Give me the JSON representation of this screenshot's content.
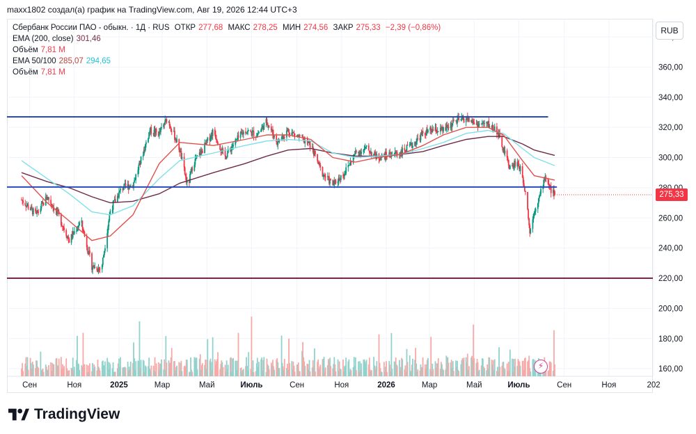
{
  "header": {
    "caption": "maxx1802 создал(а) график на TradingView.com, Авг 19, 2026 12:44 UTC+3"
  },
  "legend": {
    "symbol": "Сбербанк России ПАО - обыкн. · 1Д · RUS",
    "open_label": "ОТКР",
    "open": "277,68",
    "high_label": "МАКС",
    "high": "278,25",
    "low_label": "МИН",
    "low": "274,56",
    "close_label": "ЗАКР",
    "close": "275,33",
    "change": "−2,39 (−0,86%)",
    "ema200_label": "EMA (200, close)",
    "ema200_value": "301,46",
    "volume1_label": "Объём",
    "volume1_value": "7,81 M",
    "ema50100_label": "EMA 50/100",
    "ema50_value": "285,07",
    "ema100_value": "294,65",
    "volume2_label": "Объём",
    "volume2_value": "7,81 M"
  },
  "currency_button": "RUB",
  "last_price_tag": "275,33",
  "footer": {
    "brand": "TradingView"
  },
  "icons": {
    "logo": "tradingview-logo-icon",
    "alert": "lightning-icon"
  },
  "colors": {
    "up": "#089981",
    "down": "#f23645",
    "level_blue": "#2a4bb5",
    "level_maroon": "#8b1c45",
    "ema50": "#e0504a",
    "ema100": "#7fe0ea",
    "ema200": "#6e2a48"
  },
  "chart_data": {
    "type": "candlestick",
    "x_tick_labels": [
      "Сен",
      "Ноя",
      "2025",
      "Мар",
      "Май",
      "Июль",
      "Сен",
      "Ноя",
      "2026",
      "Мар",
      "Май",
      "Июль",
      "Сен",
      "Ноя",
      "202"
    ],
    "y_tick_labels": [
      "160,00",
      "180,00",
      "200,00",
      "220,00",
      "240,00",
      "260,00",
      "280,00",
      "300,00",
      "320,00",
      "340,00",
      "360,00",
      "380,00"
    ],
    "ylim": [
      155,
      392
    ],
    "price_path": [
      {
        "date": "2024-08-21",
        "price": 272
      },
      {
        "date": "2024-09-10",
        "price": 262
      },
      {
        "date": "2024-09-25",
        "price": 274
      },
      {
        "date": "2024-10-10",
        "price": 262
      },
      {
        "date": "2024-10-25",
        "price": 245
      },
      {
        "date": "2024-11-10",
        "price": 258
      },
      {
        "date": "2024-11-25",
        "price": 228
      },
      {
        "date": "2024-12-08",
        "price": 226
      },
      {
        "date": "2024-12-20",
        "price": 265
      },
      {
        "date": "2025-01-05",
        "price": 280
      },
      {
        "date": "2025-01-20",
        "price": 282
      },
      {
        "date": "2025-02-01",
        "price": 300
      },
      {
        "date": "2025-02-12",
        "price": 318
      },
      {
        "date": "2025-02-25",
        "price": 316
      },
      {
        "date": "2025-03-08",
        "price": 326
      },
      {
        "date": "2025-03-18",
        "price": 314
      },
      {
        "date": "2025-03-25",
        "price": 305
      },
      {
        "date": "2025-04-05",
        "price": 280
      },
      {
        "date": "2025-04-12",
        "price": 296
      },
      {
        "date": "2025-04-25",
        "price": 305
      },
      {
        "date": "2025-05-10",
        "price": 318
      },
      {
        "date": "2025-05-25",
        "price": 300
      },
      {
        "date": "2025-06-08",
        "price": 310
      },
      {
        "date": "2025-06-22",
        "price": 318
      },
      {
        "date": "2025-07-08",
        "price": 315
      },
      {
        "date": "2025-07-22",
        "price": 324
      },
      {
        "date": "2025-08-05",
        "price": 310
      },
      {
        "date": "2025-08-20",
        "price": 318
      },
      {
        "date": "2025-09-05",
        "price": 313
      },
      {
        "date": "2025-09-20",
        "price": 308
      },
      {
        "date": "2025-10-05",
        "price": 290
      },
      {
        "date": "2025-10-20",
        "price": 282
      },
      {
        "date": "2025-11-05",
        "price": 290
      },
      {
        "date": "2025-11-20",
        "price": 303
      },
      {
        "date": "2025-12-05",
        "price": 306
      },
      {
        "date": "2025-12-20",
        "price": 300
      },
      {
        "date": "2026-01-05",
        "price": 302
      },
      {
        "date": "2026-01-20",
        "price": 303
      },
      {
        "date": "2026-02-05",
        "price": 308
      },
      {
        "date": "2026-02-20",
        "price": 316
      },
      {
        "date": "2026-03-05",
        "price": 318
      },
      {
        "date": "2026-03-20",
        "price": 318
      },
      {
        "date": "2026-04-05",
        "price": 324
      },
      {
        "date": "2026-04-20",
        "price": 326
      },
      {
        "date": "2026-05-05",
        "price": 322
      },
      {
        "date": "2026-05-20",
        "price": 322
      },
      {
        "date": "2026-06-01",
        "price": 318
      },
      {
        "date": "2026-06-10",
        "price": 305
      },
      {
        "date": "2026-06-20",
        "price": 292
      },
      {
        "date": "2026-06-28",
        "price": 298
      },
      {
        "date": "2026-07-06",
        "price": 288
      },
      {
        "date": "2026-07-12",
        "price": 272
      },
      {
        "date": "2026-07-16",
        "price": 250
      },
      {
        "date": "2026-07-22",
        "price": 265
      },
      {
        "date": "2026-07-30",
        "price": 275
      },
      {
        "date": "2026-08-06",
        "price": 288
      },
      {
        "date": "2026-08-12",
        "price": 280
      },
      {
        "date": "2026-08-19",
        "price": 275.33
      }
    ],
    "ema_points": {
      "ema50": [
        {
          "date": "2024-08-21",
          "value": 288
        },
        {
          "date": "2024-09-25",
          "value": 270
        },
        {
          "date": "2024-10-25",
          "value": 258
        },
        {
          "date": "2024-11-25",
          "value": 245
        },
        {
          "date": "2024-12-20",
          "value": 248
        },
        {
          "date": "2025-01-20",
          "value": 262
        },
        {
          "date": "2025-02-25",
          "value": 296
        },
        {
          "date": "2025-03-25",
          "value": 310
        },
        {
          "date": "2025-05-10",
          "value": 308
        },
        {
          "date": "2025-06-22",
          "value": 312
        },
        {
          "date": "2025-07-22",
          "value": 315
        },
        {
          "date": "2025-08-20",
          "value": 315
        },
        {
          "date": "2025-09-20",
          "value": 312
        },
        {
          "date": "2025-10-20",
          "value": 300
        },
        {
          "date": "2025-11-20",
          "value": 297
        },
        {
          "date": "2025-12-20",
          "value": 300
        },
        {
          "date": "2026-01-20",
          "value": 302
        },
        {
          "date": "2026-02-20",
          "value": 308
        },
        {
          "date": "2026-03-20",
          "value": 315
        },
        {
          "date": "2026-04-20",
          "value": 320
        },
        {
          "date": "2026-05-20",
          "value": 320
        },
        {
          "date": "2026-06-10",
          "value": 315
        },
        {
          "date": "2026-07-06",
          "value": 298
        },
        {
          "date": "2026-07-22",
          "value": 288
        },
        {
          "date": "2026-08-19",
          "value": 285.07
        }
      ],
      "ema100": [
        {
          "date": "2024-08-21",
          "value": 298
        },
        {
          "date": "2024-09-25",
          "value": 286
        },
        {
          "date": "2024-10-25",
          "value": 276
        },
        {
          "date": "2024-11-25",
          "value": 264
        },
        {
          "date": "2024-12-20",
          "value": 262
        },
        {
          "date": "2025-01-20",
          "value": 268
        },
        {
          "date": "2025-02-25",
          "value": 286
        },
        {
          "date": "2025-03-25",
          "value": 298
        },
        {
          "date": "2025-05-10",
          "value": 303
        },
        {
          "date": "2025-06-22",
          "value": 308
        },
        {
          "date": "2025-07-22",
          "value": 311
        },
        {
          "date": "2025-08-20",
          "value": 312
        },
        {
          "date": "2025-09-20",
          "value": 311
        },
        {
          "date": "2025-10-20",
          "value": 303
        },
        {
          "date": "2025-11-20",
          "value": 300
        },
        {
          "date": "2025-12-20",
          "value": 301
        },
        {
          "date": "2026-01-20",
          "value": 302
        },
        {
          "date": "2026-02-20",
          "value": 306
        },
        {
          "date": "2026-03-20",
          "value": 310
        },
        {
          "date": "2026-04-20",
          "value": 316
        },
        {
          "date": "2026-05-20",
          "value": 318
        },
        {
          "date": "2026-06-10",
          "value": 316
        },
        {
          "date": "2026-07-06",
          "value": 306
        },
        {
          "date": "2026-07-22",
          "value": 300
        },
        {
          "date": "2026-08-19",
          "value": 294.65
        }
      ],
      "ema200": [
        {
          "date": "2024-08-21",
          "value": 290
        },
        {
          "date": "2024-09-25",
          "value": 284
        },
        {
          "date": "2024-10-25",
          "value": 280
        },
        {
          "date": "2024-11-25",
          "value": 274
        },
        {
          "date": "2024-12-20",
          "value": 270
        },
        {
          "date": "2025-01-20",
          "value": 271
        },
        {
          "date": "2025-02-25",
          "value": 276
        },
        {
          "date": "2025-03-25",
          "value": 283
        },
        {
          "date": "2025-05-10",
          "value": 290
        },
        {
          "date": "2025-06-22",
          "value": 296
        },
        {
          "date": "2025-07-22",
          "value": 301
        },
        {
          "date": "2025-08-20",
          "value": 305
        },
        {
          "date": "2025-09-20",
          "value": 306
        },
        {
          "date": "2025-10-20",
          "value": 303
        },
        {
          "date": "2025-11-20",
          "value": 301
        },
        {
          "date": "2025-12-20",
          "value": 301
        },
        {
          "date": "2026-01-20",
          "value": 302
        },
        {
          "date": "2026-02-20",
          "value": 304
        },
        {
          "date": "2026-03-20",
          "value": 308
        },
        {
          "date": "2026-04-20",
          "value": 312
        },
        {
          "date": "2026-05-20",
          "value": 314
        },
        {
          "date": "2026-06-10",
          "value": 314
        },
        {
          "date": "2026-07-06",
          "value": 309
        },
        {
          "date": "2026-07-22",
          "value": 305
        },
        {
          "date": "2026-08-19",
          "value": 301.46
        }
      ]
    },
    "horizontal_levels": [
      {
        "price": 327,
        "color": "#2a4bb5",
        "until": "2026-08-10"
      },
      {
        "price": 280.5,
        "color": "#2a4bb5",
        "until": "2026-08-22"
      },
      {
        "price": 220,
        "color": "#8b1c45",
        "until": "extend"
      }
    ],
    "last_price": 275.33,
    "grid": true,
    "volume_panel": true
  }
}
